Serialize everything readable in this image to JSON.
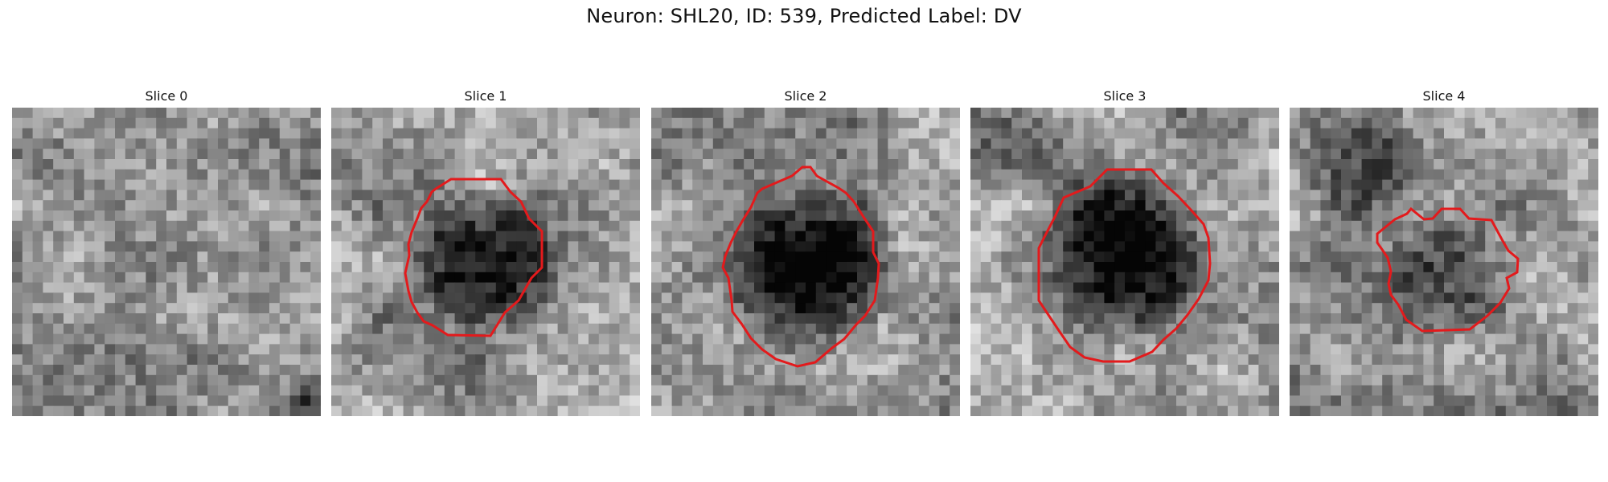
{
  "figure": {
    "title": "Neuron: SHL20, ID: 539, Predicted Label: DV"
  },
  "colors": {
    "contour": "#e31a1c",
    "background": "#ffffff"
  },
  "panels": [
    {
      "title": "Slice 0",
      "has_contour": false,
      "seed": 17,
      "blob_dark": 0.0
    },
    {
      "title": "Slice 1",
      "has_contour": true,
      "seed": 29,
      "blob_dark": 0.55
    },
    {
      "title": "Slice 2",
      "has_contour": true,
      "seed": 43,
      "blob_dark": 0.68
    },
    {
      "title": "Slice 3",
      "has_contour": true,
      "seed": 61,
      "blob_dark": 0.62
    },
    {
      "title": "Slice 4",
      "has_contour": true,
      "seed": 83,
      "blob_dark": 0.45
    }
  ]
}
